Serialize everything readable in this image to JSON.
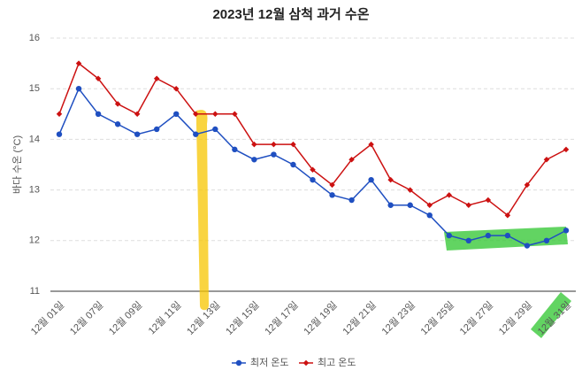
{
  "chart_data": {
    "type": "line",
    "title": "2023년 12월 삼척 과거 수온",
    "y_label": "바다 수온 (°C)",
    "categories": [
      "12월 01일",
      null,
      "12월 07일",
      null,
      "12월 09일",
      null,
      "12월 11일",
      null,
      "12월 13일",
      null,
      "12월 15일",
      null,
      "12월 17일",
      null,
      "12월 19일",
      null,
      "12월 21일",
      null,
      "12월 23일",
      null,
      "12월 25일",
      null,
      "12월 27일",
      null,
      "12월 29일",
      null,
      "12월 31일"
    ],
    "series": [
      {
        "name": "최저 온도",
        "color": "#1f4fc1",
        "values": [
          14.1,
          15.0,
          14.5,
          14.3,
          14.1,
          14.2,
          14.5,
          14.1,
          14.2,
          13.8,
          13.6,
          13.7,
          13.5,
          13.2,
          12.9,
          12.8,
          13.2,
          12.7,
          12.7,
          12.5,
          12.1,
          12.0,
          12.1,
          12.1,
          11.9,
          12.0,
          12.2
        ]
      },
      {
        "name": "최고 온도",
        "color": "#cc1111",
        "values": [
          14.5,
          15.5,
          15.2,
          14.7,
          14.5,
          15.2,
          15.0,
          14.5,
          14.5,
          14.5,
          13.9,
          13.9,
          13.9,
          13.4,
          13.1,
          13.6,
          13.9,
          13.2,
          13.0,
          12.7,
          12.9,
          12.7,
          12.8,
          12.5,
          13.1,
          13.6,
          13.8
        ]
      }
    ],
    "ylim": [
      11,
      16
    ],
    "yticks": [
      11,
      12,
      13,
      14,
      15,
      16
    ],
    "grid": true,
    "legend": "bottom"
  }
}
